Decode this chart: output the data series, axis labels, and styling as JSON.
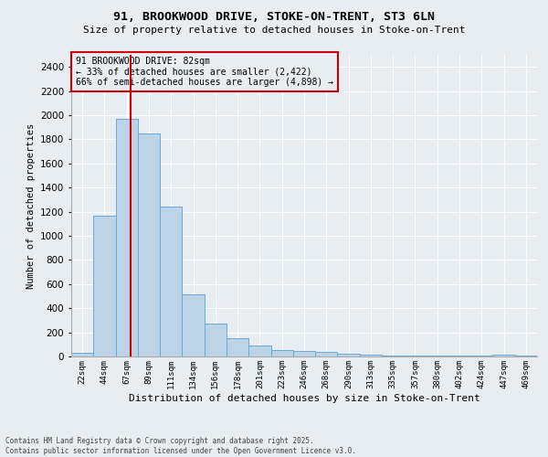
{
  "title1": "91, BROOKWOOD DRIVE, STOKE-ON-TRENT, ST3 6LN",
  "title2": "Size of property relative to detached houses in Stoke-on-Trent",
  "xlabel": "Distribution of detached houses by size in Stoke-on-Trent",
  "ylabel": "Number of detached properties",
  "bar_labels": [
    "22sqm",
    "44sqm",
    "67sqm",
    "89sqm",
    "111sqm",
    "134sqm",
    "156sqm",
    "178sqm",
    "201sqm",
    "223sqm",
    "246sqm",
    "268sqm",
    "290sqm",
    "313sqm",
    "335sqm",
    "357sqm",
    "380sqm",
    "402sqm",
    "424sqm",
    "447sqm",
    "469sqm"
  ],
  "bar_values": [
    30,
    1170,
    1970,
    1850,
    1240,
    515,
    270,
    155,
    90,
    50,
    45,
    35,
    20,
    15,
    5,
    5,
    5,
    5,
    5,
    15,
    5
  ],
  "bar_color": "#bdd4e8",
  "bar_edge_color": "#6aaad4",
  "background_color": "#e8edf4",
  "grid_color": "#ffffff",
  "vline_x": 2.18,
  "vline_color": "#cc0000",
  "annotation_text": "91 BROOKWOOD DRIVE: 82sqm\n← 33% of detached houses are smaller (2,422)\n66% of semi-detached houses are larger (4,898) →",
  "annotation_box_color": "#cc0000",
  "ylim": [
    0,
    2500
  ],
  "yticks": [
    0,
    200,
    400,
    600,
    800,
    1000,
    1200,
    1400,
    1600,
    1800,
    2000,
    2200,
    2400
  ],
  "footer1": "Contains HM Land Registry data © Crown copyright and database right 2025.",
  "footer2": "Contains public sector information licensed under the Open Government Licence v3.0."
}
